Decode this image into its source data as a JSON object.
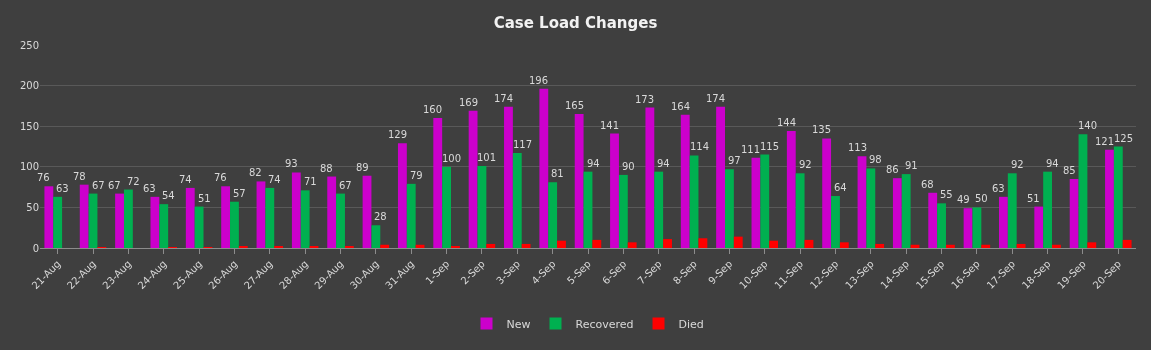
{
  "chart_data": {
    "type": "bar",
    "title": "Case Load Changes",
    "categories": [
      "21-Aug",
      "22-Aug",
      "23-Aug",
      "24-Aug",
      "25-Aug",
      "26-Aug",
      "27-Aug",
      "28-Aug",
      "29-Aug",
      "30-Aug",
      "31-Aug",
      "1-Sep",
      "2-Sep",
      "3-Sep",
      "4-Sep",
      "5-Sep",
      "6-Sep",
      "7-Sep",
      "8-Sep",
      "9-Sep",
      "10-Sep",
      "11-Sep",
      "12-Sep",
      "13-Sep",
      "14-Sep",
      "15-Sep",
      "16-Sep",
      "17-Sep",
      "18-Sep",
      "19-Sep",
      "20-Sep"
    ],
    "series": [
      {
        "name": "New",
        "color": "#cc00cc",
        "values": [
          76,
          78,
          67,
          63,
          74,
          76,
          82,
          93,
          88,
          89,
          129,
          160,
          169,
          174,
          196,
          165,
          141,
          173,
          164,
          174,
          111,
          144,
          135,
          113,
          86,
          68,
          49,
          63,
          51,
          85,
          121
        ],
        "value_labels": [
          "76",
          "78",
          "67",
          "63",
          "74",
          "76",
          "82",
          "93",
          "88",
          "89",
          "129",
          "160",
          "169",
          "174",
          "196",
          "165",
          "141",
          "173",
          "164",
          "174",
          "111",
          "144",
          "135",
          "113",
          "86",
          "68",
          "49",
          "63",
          "51",
          "85",
          "121"
        ]
      },
      {
        "name": "Recovered",
        "color": "#00b050",
        "values": [
          63,
          67,
          72,
          54,
          51,
          57,
          74,
          71,
          67,
          28,
          79,
          100,
          101,
          117,
          81,
          94,
          90,
          94,
          114,
          97,
          115,
          92,
          64,
          98,
          91,
          55,
          50,
          92,
          94,
          140,
          125
        ],
        "value_labels": [
          "63",
          "67",
          "72",
          "54",
          "51",
          "57",
          "74",
          "71",
          "67",
          "28",
          "79",
          "100",
          "101",
          "117",
          "81",
          "94",
          "90",
          "94",
          "114",
          "97",
          "115",
          "92",
          "64",
          "98",
          "91",
          "55",
          "50",
          "92",
          "94",
          "140",
          "125"
        ]
      },
      {
        "name": "Died",
        "color": "#ff0000",
        "values": [
          0,
          1,
          0,
          1,
          1,
          2,
          2,
          2,
          2,
          4,
          4,
          2,
          5,
          5,
          9,
          10,
          7,
          11,
          12,
          14,
          9,
          10,
          7,
          5,
          4,
          4,
          4,
          5,
          4,
          7,
          10
        ]
      }
    ],
    "ylim": [
      0,
      250
    ],
    "yticks": [
      0,
      50,
      100,
      150,
      200,
      250
    ],
    "grid": "y",
    "legend": "bottom"
  }
}
